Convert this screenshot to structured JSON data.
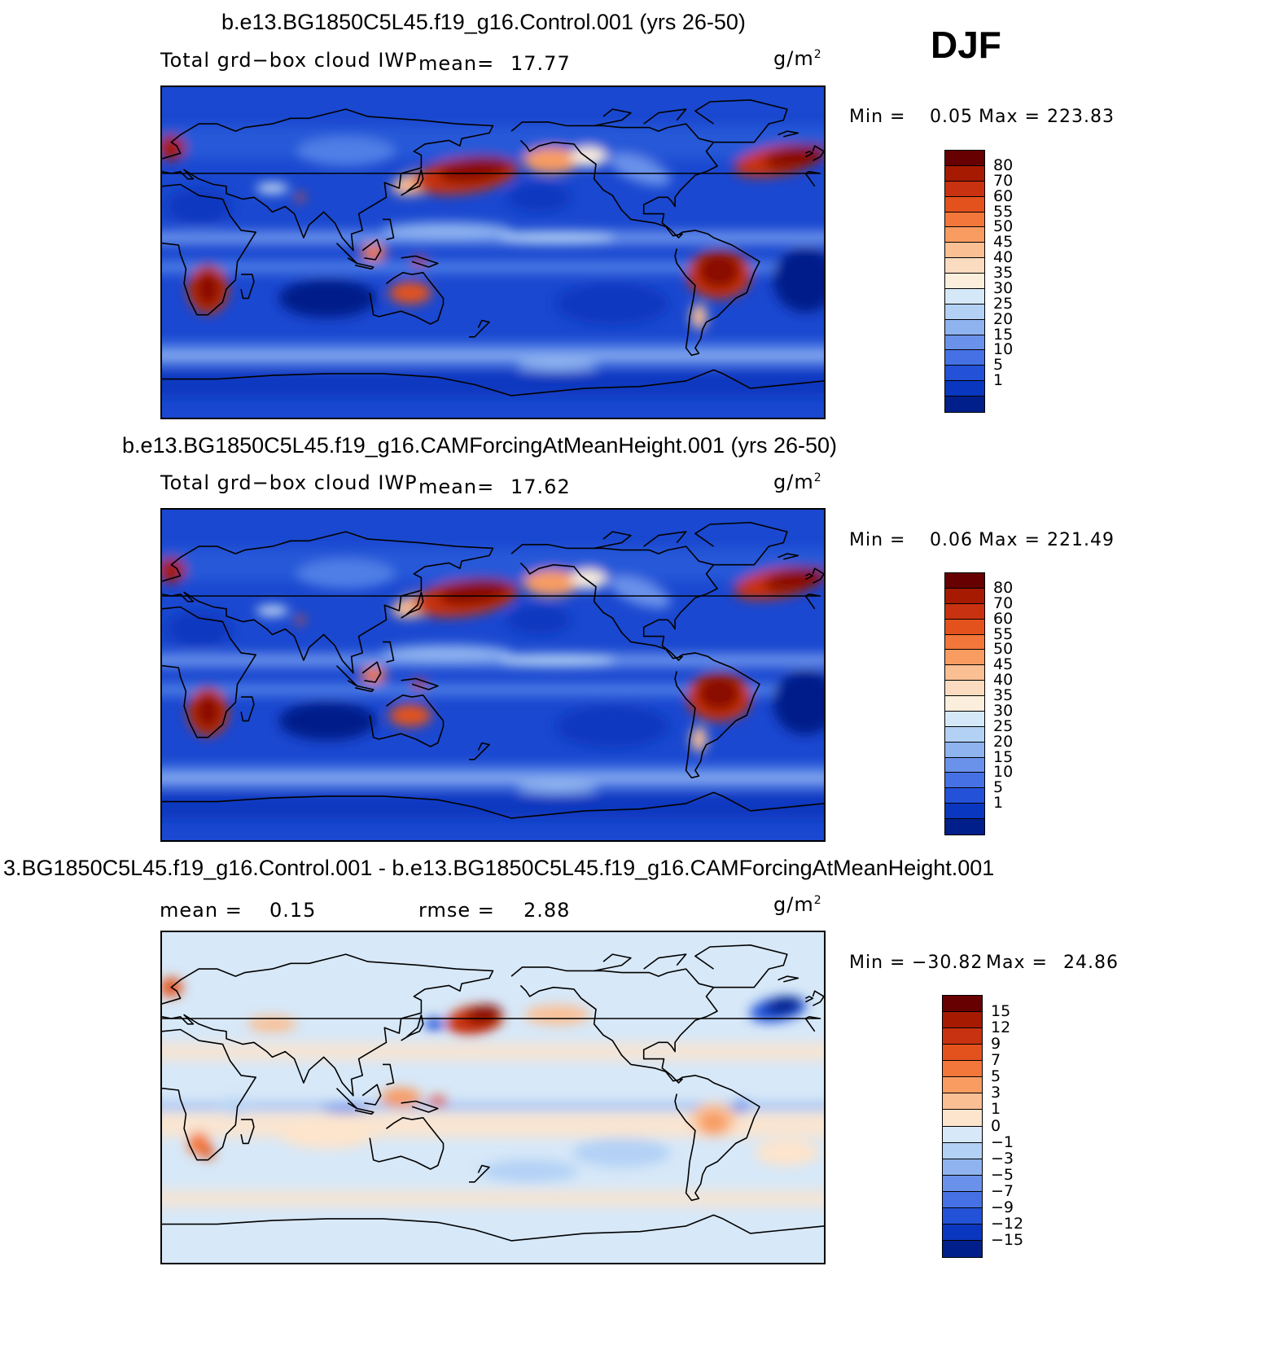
{
  "season": "DJF",
  "panels": [
    {
      "title": "b.e13.BG1850C5L45.f19_g16.Control.001 (yrs 26-50)",
      "variable": "Total grd−box cloud IWP",
      "stat1_label": "mean=",
      "stat1_value": "17.77",
      "stat2_label": "",
      "stat2_value": "",
      "units": "g/m",
      "units_sup": "2",
      "min_label": "Min =",
      "min_value": "0.05",
      "max_label": "Max =",
      "max_value": "223.83",
      "colorbar_labels": [
        "80",
        "70",
        "60",
        "55",
        "50",
        "45",
        "40",
        "35",
        "30",
        "25",
        "20",
        "15",
        "10",
        "5",
        "1"
      ]
    },
    {
      "title": "b.e13.BG1850C5L45.f19_g16.CAMForcingAtMeanHeight.001 (yrs 26-50)",
      "variable": "Total grd−box cloud IWP",
      "stat1_label": "mean=",
      "stat1_value": "17.62",
      "stat2_label": "",
      "stat2_value": "",
      "units": "g/m",
      "units_sup": "2",
      "min_label": "Min =",
      "min_value": "0.06",
      "max_label": "Max =",
      "max_value": "221.49",
      "colorbar_labels": [
        "80",
        "70",
        "60",
        "55",
        "50",
        "45",
        "40",
        "35",
        "30",
        "25",
        "20",
        "15",
        "10",
        "5",
        "1"
      ]
    },
    {
      "title": "3.BG1850C5L45.f19_g16.Control.001 - b.e13.BG1850C5L45.f19_g16.CAMForcingAtMeanHeight.001",
      "variable": "",
      "stat1_label": "mean =",
      "stat1_value": "0.15",
      "stat2_label": "rmse =",
      "stat2_value": "2.88",
      "units": "g/m",
      "units_sup": "2",
      "min_label": "Min =",
      "min_value": "−30.82",
      "max_label": "Max =",
      "max_value": "24.86",
      "colorbar_labels": [
        "15",
        "12",
        "9",
        "7",
        "5",
        "3",
        "1",
        "0",
        "−1",
        "−3",
        "−5",
        "−7",
        "−9",
        "−12",
        "−15"
      ]
    }
  ],
  "colors": {
    "abs_scale": [
      "#670000",
      "#a51a00",
      "#c83210",
      "#e3521c",
      "#f3773a",
      "#f89c62",
      "#fbbf94",
      "#fcdcc0",
      "#fbeedd",
      "#d5e8f8",
      "#b3d1f5",
      "#8fb3ef",
      "#6b92ea",
      "#4671e4",
      "#2352d8",
      "#0a37bf",
      "#001f8a"
    ],
    "diff_scale": [
      "#670000",
      "#a51a00",
      "#c83210",
      "#e3521c",
      "#f3773a",
      "#f89c62",
      "#fbbf94",
      "#fde4cc",
      "#d7e8f8",
      "#b3d1f5",
      "#8fb3ef",
      "#6b92ea",
      "#4671e4",
      "#2352d8",
      "#0a37bf",
      "#001f8a"
    ],
    "coastline": "#000000"
  }
}
